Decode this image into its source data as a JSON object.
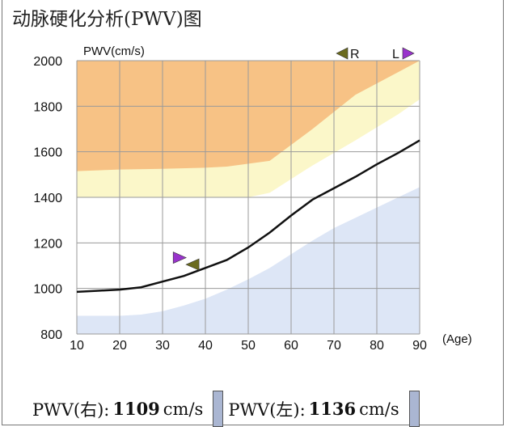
{
  "title": "动脉硬化分析(PWV)图",
  "chart_data": {
    "type": "line",
    "ylabel": "PWV(cm/s)",
    "xlabel": "(Age)",
    "xlim": [
      10,
      90
    ],
    "ylim": [
      800,
      2000
    ],
    "x_ticks": [
      10,
      20,
      30,
      40,
      50,
      60,
      70,
      80,
      90
    ],
    "y_ticks": [
      800,
      1000,
      1200,
      1400,
      1600,
      1800,
      2000
    ],
    "grid": true,
    "series": [
      {
        "x": [
          10,
          15,
          20,
          25,
          30,
          35,
          40,
          45,
          50,
          55,
          60,
          65,
          70,
          75,
          80,
          85,
          90
        ],
        "values": [
          985,
          990,
          995,
          1005,
          1030,
          1055,
          1090,
          1125,
          1180,
          1245,
          1320,
          1390,
          1440,
          1490,
          1545,
          1595,
          1650
        ]
      }
    ],
    "bands": {
      "orange": {
        "lower_x": [
          10,
          20,
          30,
          40,
          45,
          55,
          65,
          75,
          90
        ],
        "lower_y": [
          1515,
          1522,
          1525,
          1530,
          1535,
          1560,
          1700,
          1850,
          2000
        ]
      },
      "yellow": {
        "lower_x": [
          10,
          20,
          30,
          40,
          50,
          55,
          65,
          75,
          85,
          90
        ],
        "lower_y": [
          1400,
          1400,
          1400,
          1400,
          1400,
          1420,
          1540,
          1650,
          1765,
          1830
        ]
      },
      "white": {
        "lower_x": [
          10,
          20,
          25,
          30,
          35,
          40,
          45,
          50,
          55,
          60,
          65,
          70,
          75,
          80,
          85,
          90
        ],
        "lower_y": [
          880,
          880,
          885,
          900,
          925,
          955,
          995,
          1040,
          1090,
          1150,
          1210,
          1265,
          1310,
          1355,
          1400,
          1445
        ]
      }
    },
    "markers": [
      {
        "label": "R",
        "direction": "left",
        "color": "#6b6b1e"
      },
      {
        "label": "L",
        "direction": "right",
        "color": "#9933cc"
      }
    ],
    "points": [
      {
        "x": 34,
        "y": 1135,
        "direction": "right",
        "color": "#9933cc"
      },
      {
        "x": 37,
        "y": 1105,
        "direction": "left",
        "color": "#6b6b1e"
      }
    ],
    "colors": {
      "orange": "#f7c285",
      "yellow": "#fbf7c9",
      "white": "#ffffff",
      "blue": "#dde6f6",
      "grid": "#9a9a9a",
      "line": "#111111"
    }
  },
  "footer": {
    "right_label": "PWV(右):",
    "right_value": "1109",
    "left_label": "PWV(左):",
    "left_value": "1136",
    "unit": "cm/s"
  }
}
